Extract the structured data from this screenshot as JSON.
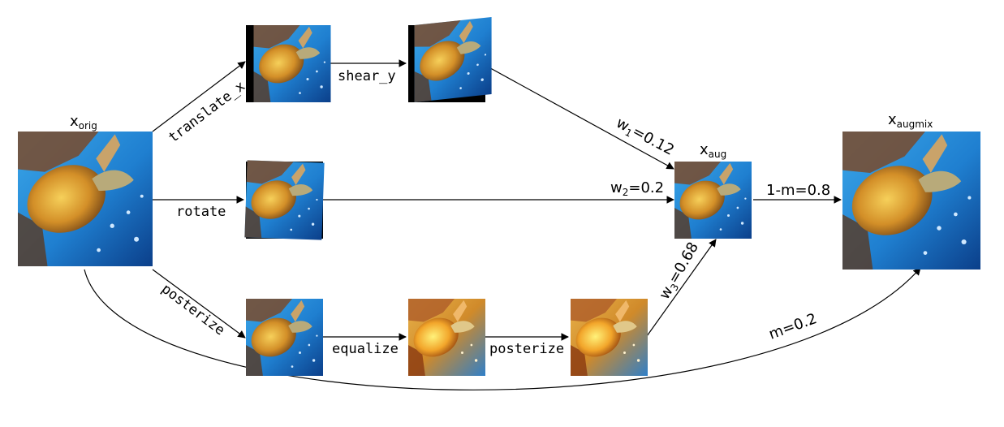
{
  "nodes": {
    "orig": {
      "base": "x",
      "sub": "orig"
    },
    "aug": {
      "base": "x",
      "sub": "aug"
    },
    "augmix": {
      "base": "x",
      "sub": "augmix"
    }
  },
  "ops": {
    "translate_x": "translate_x",
    "shear_y": "shear_y",
    "rotate": "rotate",
    "posterize_1": "posterize",
    "equalize": "equalize",
    "posterize_2": "posterize"
  },
  "weights": {
    "w1": {
      "base": "w",
      "sub": "1",
      "value": "=0.12"
    },
    "w2": {
      "base": "w",
      "sub": "2",
      "value": "=0.2"
    },
    "w3": {
      "base": "w",
      "sub": "3",
      "value": "=0.68"
    }
  },
  "mix": {
    "one_minus_m": "1-m=0.8",
    "m": "m=0.2"
  },
  "colors": {
    "water": "#1f8fd8",
    "water_deep": "#0b3f8a",
    "reef": "#7a4a2a",
    "shell": "#d89a2a",
    "shell_bright": "#f2c13a"
  }
}
